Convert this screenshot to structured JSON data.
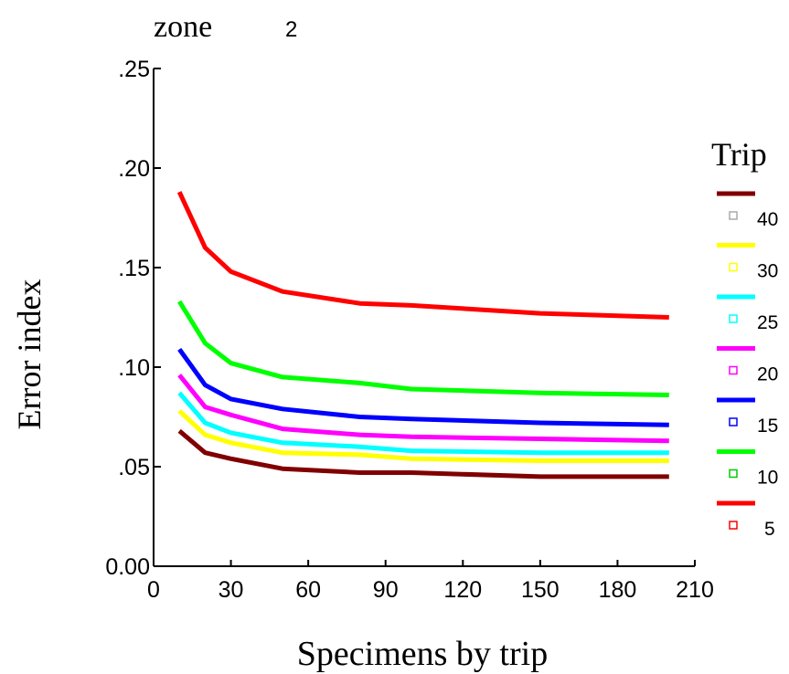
{
  "chart_data": {
    "type": "line",
    "title": "zone",
    "title_value": "2",
    "xlabel": "Specimens by trip",
    "ylabel": "Error index",
    "xlim": [
      0,
      210
    ],
    "ylim": [
      0,
      0.25
    ],
    "x_ticks": [
      0,
      30,
      60,
      90,
      120,
      150,
      180,
      210
    ],
    "x_tick_labels": [
      "0",
      "30",
      "60",
      "90",
      "120",
      "150",
      "180",
      "210"
    ],
    "y_ticks": [
      0,
      0.05,
      0.1,
      0.15,
      0.2,
      0.25
    ],
    "y_tick_labels": [
      "0.00",
      ".05",
      ".10",
      ".15",
      ".20",
      ".25"
    ],
    "grid": false,
    "legend": {
      "title": "Trip",
      "position": "right"
    },
    "x": [
      10,
      20,
      30,
      50,
      80,
      100,
      150,
      200
    ],
    "series": [
      {
        "name": "40",
        "color": "#800000",
        "marker_color": "#aaaaaa",
        "values": [
          0.068,
          0.057,
          0.054,
          0.049,
          0.047,
          0.047,
          0.045,
          0.045
        ]
      },
      {
        "name": "30",
        "color": "#ffff00",
        "marker_color": "#ffff00",
        "values": [
          0.078,
          0.066,
          0.062,
          0.057,
          0.056,
          0.054,
          0.053,
          0.053
        ]
      },
      {
        "name": "25",
        "color": "#00ffff",
        "marker_color": "#00ffff",
        "values": [
          0.087,
          0.072,
          0.067,
          0.062,
          0.06,
          0.058,
          0.057,
          0.057
        ]
      },
      {
        "name": "20",
        "color": "#ff00ff",
        "marker_color": "#ff00ff",
        "values": [
          0.096,
          0.08,
          0.076,
          0.069,
          0.066,
          0.065,
          0.064,
          0.063
        ]
      },
      {
        "name": "15",
        "color": "#0000ff",
        "marker_color": "#0000ff",
        "values": [
          0.109,
          0.091,
          0.084,
          0.079,
          0.075,
          0.074,
          0.072,
          0.071
        ]
      },
      {
        "name": "10",
        "color": "#00ff00",
        "marker_color": "#00cc00",
        "values": [
          0.133,
          0.112,
          0.102,
          0.095,
          0.092,
          0.089,
          0.087,
          0.086
        ]
      },
      {
        "name": "5",
        "color": "#ff0000",
        "marker_color": "#ff0000",
        "values": [
          0.188,
          0.16,
          0.148,
          0.138,
          0.132,
          0.131,
          0.127,
          0.125
        ]
      }
    ]
  }
}
